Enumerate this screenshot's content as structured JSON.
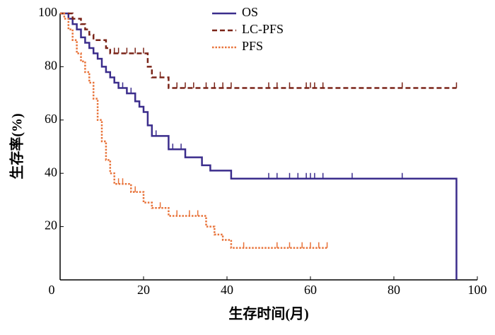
{
  "chart_data": {
    "type": "step",
    "x_label": "生存时间(月)",
    "y_label": "生存率(%)",
    "xlim": [
      0,
      100
    ],
    "ylim": [
      0,
      100
    ],
    "xticks": [
      0,
      20,
      40,
      60,
      80,
      100
    ],
    "yticks": [
      20,
      40,
      60,
      80,
      100
    ],
    "series": [
      {
        "name": "OS",
        "color": "#3b2d8c",
        "style": "solid",
        "x": [
          0,
          2,
          3,
          4,
          5,
          6,
          7,
          8,
          9,
          10,
          11,
          12,
          13,
          14,
          16,
          18,
          19,
          20,
          21,
          22,
          26,
          30,
          34,
          36,
          41,
          95
        ],
        "values": [
          100,
          98,
          96,
          94,
          91,
          89,
          87,
          85,
          83,
          80,
          78,
          76,
          74,
          72,
          70,
          67,
          65,
          63,
          58,
          54,
          49,
          46,
          43,
          41,
          38,
          0
        ],
        "censored": [
          13,
          15,
          17,
          23,
          27,
          29,
          50,
          52,
          55,
          57,
          59,
          60,
          61,
          63,
          70,
          82
        ]
      },
      {
        "name": "LC-PFS",
        "color": "#7a2418",
        "style": "dashed",
        "x": [
          0,
          3,
          5,
          6,
          7,
          8,
          11,
          12,
          21,
          22,
          26,
          95
        ],
        "values": [
          100,
          98,
          96,
          94,
          92,
          90,
          87,
          85,
          80,
          76,
          72,
          72
        ],
        "censored": [
          13,
          14,
          16,
          18,
          20,
          24,
          28,
          30,
          32,
          35,
          37,
          39,
          41,
          50,
          52,
          55,
          59,
          60,
          61,
          63,
          82,
          95
        ]
      },
      {
        "name": "PFS",
        "color": "#e8733a",
        "style": "dotted",
        "x": [
          0,
          1,
          2,
          3,
          4,
          5,
          6,
          7,
          8,
          9,
          10,
          11,
          12,
          13,
          17,
          20,
          22,
          26,
          35,
          37,
          39,
          41,
          64
        ],
        "values": [
          100,
          98,
          94,
          90,
          85,
          82,
          78,
          74,
          68,
          60,
          52,
          45,
          40,
          36,
          33,
          29,
          27,
          24,
          20,
          17,
          15,
          12,
          12
        ],
        "censored": [
          14,
          15,
          18,
          24,
          28,
          31,
          33,
          44,
          52,
          55,
          58,
          60,
          62,
          64
        ]
      }
    ]
  }
}
